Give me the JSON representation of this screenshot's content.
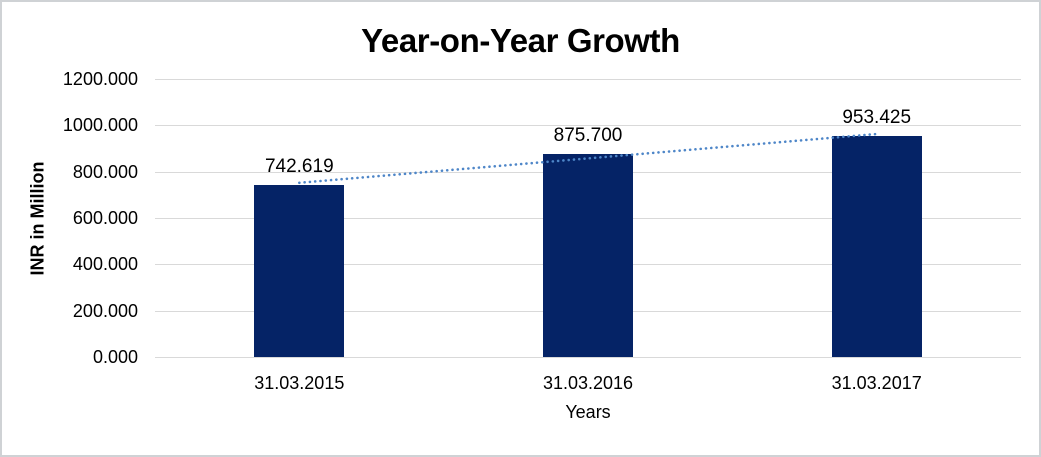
{
  "chart_data": {
    "type": "bar",
    "title": "Year-on-Year Growth",
    "xlabel": "Years",
    "ylabel": "INR in Million",
    "categories": [
      "31.03.2015",
      "31.03.2016",
      "31.03.2017"
    ],
    "values": [
      742.619,
      875.7,
      953.425
    ],
    "value_labels": [
      "742.619",
      "875.700",
      "953.425"
    ],
    "yticks": [
      {
        "value": 0,
        "label": "0.000"
      },
      {
        "value": 200,
        "label": "200.000"
      },
      {
        "value": 400,
        "label": "400.000"
      },
      {
        "value": 600,
        "label": "600.000"
      },
      {
        "value": 800,
        "label": "800.000"
      },
      {
        "value": 1000,
        "label": "1000.000"
      },
      {
        "value": 1200,
        "label": "1200.000"
      }
    ],
    "ylim": [
      0,
      1200
    ],
    "grid": true,
    "legend": "none",
    "trendline": {
      "type": "linear",
      "style": "dotted",
      "span": "first-to-last-bar-center"
    },
    "colors": {
      "bar": "#052366",
      "trend": "#4e86c8",
      "grid": "#d9d9d9",
      "text": "#000000",
      "frame_border": "#cfd2d5",
      "background": "#ffffff"
    }
  }
}
